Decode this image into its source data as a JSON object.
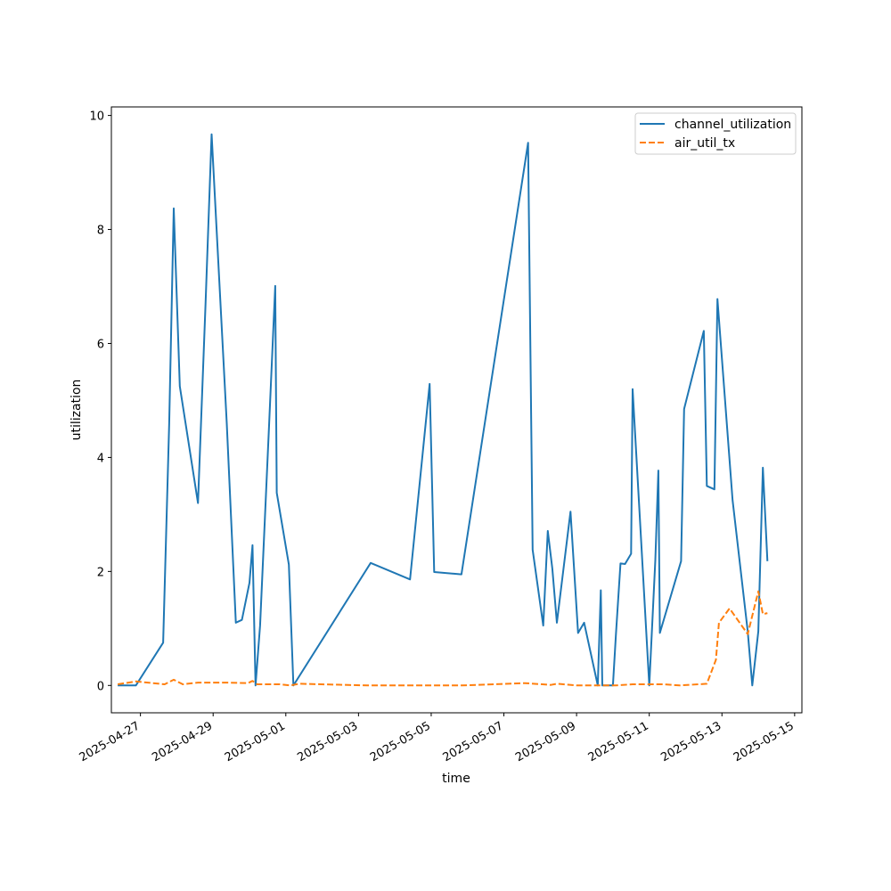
{
  "chart_data": {
    "type": "line",
    "xlabel": "time",
    "ylabel": "utilization",
    "xlim": [
      "2025-04-26T04:48",
      "2025-05-15T04:48"
    ],
    "ylim": [
      -0.48,
      10.15
    ],
    "x_ticks": [
      "2025-04-27",
      "2025-04-29",
      "2025-05-01",
      "2025-05-03",
      "2025-05-05",
      "2025-05-07",
      "2025-05-09",
      "2025-05-11",
      "2025-05-13",
      "2025-05-15"
    ],
    "y_ticks": [
      0,
      2,
      4,
      6,
      8,
      10
    ],
    "legend": {
      "position": "top-right"
    },
    "grid": false,
    "series": [
      {
        "name": "channel_utilization",
        "color": "#1f77b4",
        "style": "solid",
        "points": [
          [
            "2025-04-26T09:00",
            0.0
          ],
          [
            "2025-04-26T21:00",
            0.0
          ],
          [
            "2025-04-27T15:00",
            0.75
          ],
          [
            "2025-04-27T19:00",
            4.6
          ],
          [
            "2025-04-27T22:00",
            8.37
          ],
          [
            "2025-04-28T02:00",
            5.25
          ],
          [
            "2025-04-28T14:00",
            3.2
          ],
          [
            "2025-04-28T19:00",
            6.7
          ],
          [
            "2025-04-28T23:00",
            9.67
          ],
          [
            "2025-04-29T09:00",
            4.6
          ],
          [
            "2025-04-29T15:00",
            1.1
          ],
          [
            "2025-04-29T19:00",
            1.15
          ],
          [
            "2025-04-30T00:00",
            1.8
          ],
          [
            "2025-04-30T02:00",
            2.46
          ],
          [
            "2025-04-30T04:00",
            0.0
          ],
          [
            "2025-04-30T07:00",
            1.05
          ],
          [
            "2025-04-30T13:00",
            4.6
          ],
          [
            "2025-04-30T17:00",
            7.01
          ],
          [
            "2025-04-30T18:00",
            3.38
          ],
          [
            "2025-05-01T02:00",
            2.12
          ],
          [
            "2025-05-01T05:00",
            0.0
          ],
          [
            "2025-05-03T08:00",
            2.15
          ],
          [
            "2025-05-04T10:00",
            1.86
          ],
          [
            "2025-05-04T23:00",
            5.29
          ],
          [
            "2025-05-05T02:00",
            1.99
          ],
          [
            "2025-05-05T20:00",
            1.95
          ],
          [
            "2025-05-07T16:00",
            9.52
          ],
          [
            "2025-05-07T19:00",
            2.38
          ],
          [
            "2025-05-08T02:00",
            1.05
          ],
          [
            "2025-05-08T05:00",
            2.71
          ],
          [
            "2025-05-08T08:00",
            2.05
          ],
          [
            "2025-05-08T11:00",
            1.1
          ],
          [
            "2025-05-08T20:00",
            3.05
          ],
          [
            "2025-05-09T01:00",
            0.92
          ],
          [
            "2025-05-09T05:00",
            1.1
          ],
          [
            "2025-05-09T14:00",
            0.0
          ],
          [
            "2025-05-09T16:00",
            1.67
          ],
          [
            "2025-05-09T17:00",
            0.0
          ],
          [
            "2025-05-10T00:00",
            0.0
          ],
          [
            "2025-05-10T02:00",
            0.9
          ],
          [
            "2025-05-10T05:00",
            2.14
          ],
          [
            "2025-05-10T08:00",
            2.13
          ],
          [
            "2025-05-10T12:00",
            2.31
          ],
          [
            "2025-05-10T13:00",
            5.2
          ],
          [
            "2025-05-11T00:00",
            0.0
          ],
          [
            "2025-05-11T04:00",
            2.2
          ],
          [
            "2025-05-11T06:00",
            3.77
          ],
          [
            "2025-05-11T07:00",
            0.92
          ],
          [
            "2025-05-11T21:00",
            2.18
          ],
          [
            "2025-05-11T23:00",
            4.85
          ],
          [
            "2025-05-12T12:00",
            6.22
          ],
          [
            "2025-05-12T14:00",
            3.5
          ],
          [
            "2025-05-12T19:00",
            3.44
          ],
          [
            "2025-05-12T21:00",
            6.78
          ],
          [
            "2025-05-13T07:00",
            3.25
          ],
          [
            "2025-05-13T17:00",
            0.95
          ],
          [
            "2025-05-13T20:00",
            0.0
          ],
          [
            "2025-05-14T00:00",
            0.95
          ],
          [
            "2025-05-14T03:00",
            3.82
          ],
          [
            "2025-05-14T06:00",
            2.18
          ]
        ]
      },
      {
        "name": "air_util_tx",
        "color": "#ff7f0e",
        "style": "dashed",
        "points": [
          [
            "2025-04-26T09:00",
            0.02
          ],
          [
            "2025-04-26T21:00",
            0.07
          ],
          [
            "2025-04-27T16:00",
            0.02
          ],
          [
            "2025-04-27T22:00",
            0.1
          ],
          [
            "2025-04-28T04:00",
            0.02
          ],
          [
            "2025-04-28T14:00",
            0.05
          ],
          [
            "2025-04-29T09:00",
            0.05
          ],
          [
            "2025-04-29T23:00",
            0.04
          ],
          [
            "2025-04-30T02:00",
            0.08
          ],
          [
            "2025-04-30T05:00",
            0.02
          ],
          [
            "2025-04-30T20:00",
            0.02
          ],
          [
            "2025-05-01T03:00",
            0.0
          ],
          [
            "2025-05-01T09:00",
            0.03
          ],
          [
            "2025-05-03T06:00",
            0.0
          ],
          [
            "2025-05-05T20:00",
            0.0
          ],
          [
            "2025-05-07T14:00",
            0.04
          ],
          [
            "2025-05-08T07:00",
            0.01
          ],
          [
            "2025-05-08T11:00",
            0.03
          ],
          [
            "2025-05-09T00:00",
            0.0
          ],
          [
            "2025-05-09T13:00",
            0.0
          ],
          [
            "2025-05-10T02:00",
            0.0
          ],
          [
            "2025-05-10T13:00",
            0.02
          ],
          [
            "2025-05-11T10:00",
            0.02
          ],
          [
            "2025-05-11T20:00",
            0.0
          ],
          [
            "2025-05-12T14:00",
            0.03
          ],
          [
            "2025-05-12T20:00",
            0.45
          ],
          [
            "2025-05-12T22:00",
            1.1
          ],
          [
            "2025-05-13T05:00",
            1.35
          ],
          [
            "2025-05-13T17:00",
            0.9
          ],
          [
            "2025-05-14T00:00",
            1.65
          ],
          [
            "2025-05-14T03:00",
            1.25
          ],
          [
            "2025-05-14T06:00",
            1.27
          ]
        ]
      }
    ]
  }
}
